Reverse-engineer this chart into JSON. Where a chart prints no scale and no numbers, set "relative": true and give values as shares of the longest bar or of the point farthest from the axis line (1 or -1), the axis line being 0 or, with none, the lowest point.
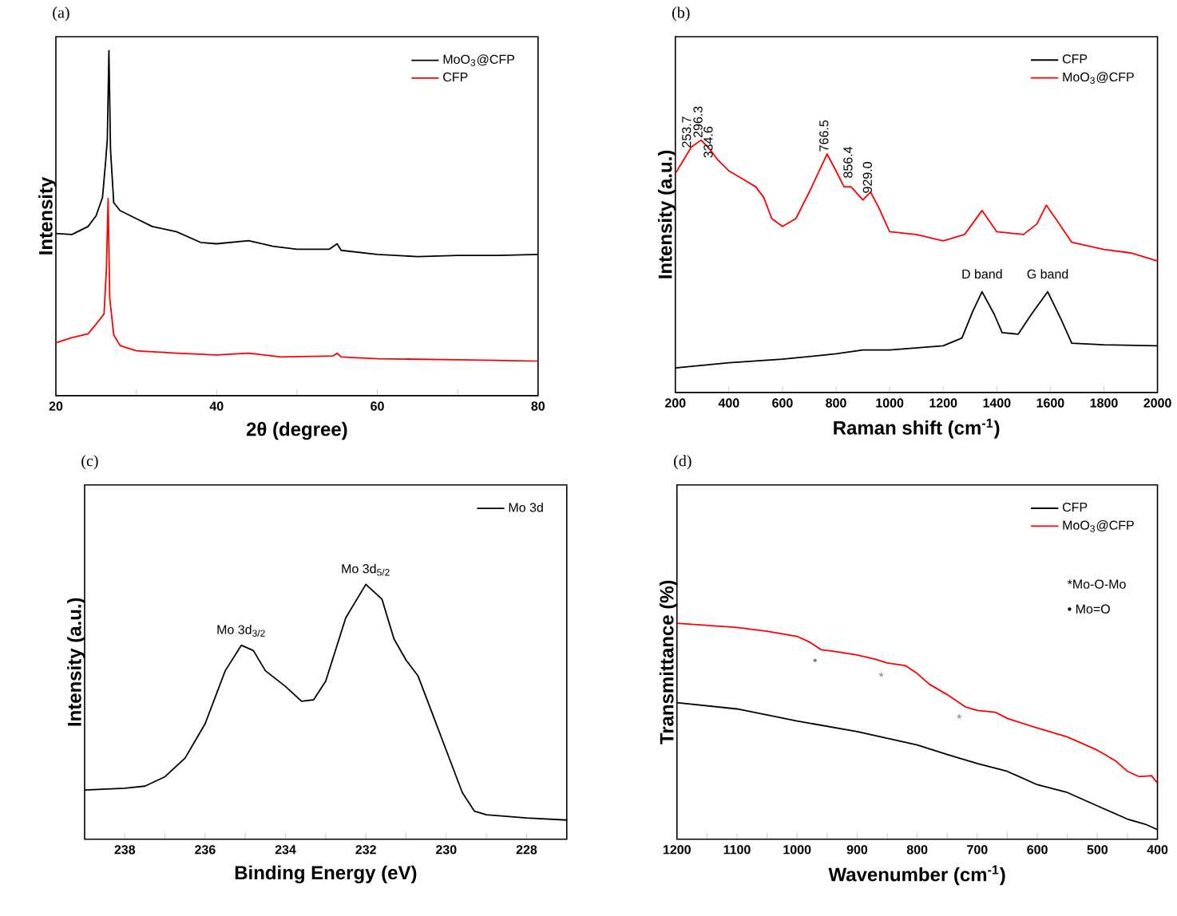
{
  "chart_data": [
    {
      "type": "line",
      "title": "(a)",
      "xlabel": "2θ (degree)",
      "ylabel": "Intensity",
      "relative": true,
      "tick_labels": "x",
      "legend": "top right",
      "marker": "none",
      "line_style": "solid",
      "xlim": [
        20,
        80
      ],
      "xticks": [
        20,
        {
          "value": 30,
          "label": null
        },
        40,
        {
          "value": 50,
          "label": null
        },
        60,
        {
          "value": 70,
          "label": null
        },
        80
      ],
      "series": [
        {
          "name": "MoO$_{3}$@CFP",
          "color": "#000000",
          "x": [
            20,
            22,
            24,
            25,
            25.8,
            26.2,
            26.4,
            26.6,
            26.8,
            27.2,
            28,
            30,
            32,
            35,
            38,
            40,
            44,
            47,
            50,
            54,
            55,
            55.5,
            60,
            65,
            70,
            75,
            80
          ],
          "values": [
            0.47,
            0.467,
            0.49,
            0.521,
            0.574,
            0.681,
            0.743,
            1.0,
            0.712,
            0.559,
            0.536,
            0.513,
            0.49,
            0.475,
            0.444,
            0.44,
            0.449,
            0.433,
            0.424,
            0.424,
            0.44,
            0.421,
            0.409,
            0.403,
            0.406,
            0.406,
            0.409
          ]
        },
        {
          "name": "CFP",
          "color": "#ff0000",
          "x": [
            20,
            22,
            24,
            25,
            26,
            26.3,
            26.5,
            26.7,
            27.2,
            28,
            30,
            35,
            40,
            44,
            48,
            54.5,
            55,
            55.5,
            60,
            70,
            80
          ],
          "values": [
            0.153,
            0.168,
            0.179,
            0.207,
            0.237,
            0.375,
            0.571,
            0.283,
            0.176,
            0.145,
            0.13,
            0.123,
            0.118,
            0.123,
            0.112,
            0.115,
            0.123,
            0.112,
            0.107,
            0.104,
            0.1
          ]
        }
      ]
    },
    {
      "type": "line",
      "title": "(b)",
      "xlabel": "Raman shift (cm$^{-1}$)",
      "ylabel": "Intensity (a.u.)",
      "relative": true,
      "tick_labels": "x",
      "legend": "top right",
      "marker": "none",
      "line_style": "solid",
      "xlim": [
        200,
        2000
      ],
      "xticks": [
        200,
        400,
        600,
        800,
        1000,
        1200,
        1400,
        1600,
        1800,
        2000
      ],
      "series": [
        {
          "name": "CFP",
          "color": "#000000",
          "x": [
            200,
            400,
            600,
            800,
            900,
            1000,
            1200,
            1270,
            1310,
            1345,
            1390,
            1420,
            1480,
            1530,
            1590,
            1640,
            1680,
            1800,
            2000
          ],
          "values": [
            0.097,
            0.118,
            0.132,
            0.153,
            0.168,
            0.168,
            0.185,
            0.216,
            0.321,
            0.399,
            0.311,
            0.237,
            0.231,
            0.311,
            0.399,
            0.29,
            0.195,
            0.189,
            0.185
          ]
        },
        {
          "name": "MoO$_{3}$@CFP",
          "color": "#ff0000",
          "x": [
            200,
            230,
            260,
            296.3,
            330,
            360,
            400,
            450,
            500,
            530,
            560,
            600,
            650,
            700,
            766.5,
            800,
            830,
            856,
            900,
            929,
            960,
            1000,
            1100,
            1200,
            1280,
            1345,
            1400,
            1500,
            1550,
            1585,
            1620,
            1680,
            1800,
            1900,
            2000
          ],
          "values": [
            0.868,
            0.92,
            0.973,
            1.0,
            0.962,
            0.92,
            0.878,
            0.847,
            0.815,
            0.773,
            0.689,
            0.658,
            0.689,
            0.794,
            0.945,
            0.878,
            0.815,
            0.815,
            0.763,
            0.794,
            0.731,
            0.637,
            0.626,
            0.601,
            0.626,
            0.721,
            0.637,
            0.626,
            0.668,
            0.742,
            0.689,
            0.595,
            0.567,
            0.553,
            0.521
          ]
        }
      ],
      "annotations": [
        {
          "text": "253.7",
          "x": 253.7,
          "y": 0.96
        },
        {
          "text": "296.3",
          "x": 296.3,
          "y": 1.0
        },
        {
          "text": "334.6",
          "x": 334.6,
          "y": 0.92
        },
        {
          "text": "766.5",
          "x": 766.5,
          "y": 0.945
        },
        {
          "text": "856.4",
          "x": 856.4,
          "y": 0.84
        },
        {
          "text": "929.0",
          "x": 929.0,
          "y": 0.78
        },
        {
          "text": "D band",
          "x": 1345,
          "y": 0.43
        },
        {
          "text": "G band",
          "x": 1590,
          "y": 0.43
        }
      ]
    },
    {
      "type": "line",
      "title": "(c)",
      "xlabel": "Binding Energy (eV)",
      "ylabel": "Intensity (a.u.)",
      "relative": true,
      "tick_labels": "x",
      "legend": "top right",
      "marker": "none",
      "line_style": "solid",
      "xlim": [
        239,
        227
      ],
      "xticks": [
        238,
        {
          "value": 237,
          "label": null
        },
        236,
        {
          "value": 235,
          "label": null
        },
        234,
        {
          "value": 233,
          "label": null
        },
        232,
        {
          "value": 231,
          "label": null
        },
        230,
        {
          "value": 229,
          "label": null
        },
        228
      ],
      "series": [
        {
          "name": "Mo 3d",
          "color": "#000000",
          "x": [
            239,
            238,
            237.5,
            237,
            236.5,
            236,
            235.5,
            235.1,
            234.8,
            234.5,
            234,
            233.6,
            233.3,
            233,
            232.5,
            232,
            231.6,
            231.3,
            231,
            230.7,
            230.3,
            230,
            229.6,
            229.3,
            229,
            228,
            227
          ],
          "values": [
            0.193,
            0.2,
            0.208,
            0.245,
            0.318,
            0.453,
            0.661,
            0.761,
            0.74,
            0.661,
            0.599,
            0.541,
            0.547,
            0.62,
            0.869,
            1.0,
            0.942,
            0.786,
            0.703,
            0.64,
            0.474,
            0.349,
            0.183,
            0.11,
            0.096,
            0.083,
            0.075
          ]
        }
      ],
      "annotations": [
        {
          "text": "Mo 3d$_{3/2}$",
          "x": 235.1,
          "y": 0.761
        },
        {
          "text": "Mo 3d$_{5/2}$",
          "x": 232,
          "y": 1.0
        }
      ]
    },
    {
      "type": "line",
      "title": "(d)",
      "xlabel": "Wavenumber (cm$^{-1}$)",
      "ylabel": "Transmittance (%)",
      "relative": true,
      "tick_labels": "x",
      "legend": "top right",
      "marker": "none",
      "line_style": "solid",
      "xlim": [
        1200,
        400
      ],
      "xticks": [
        1200,
        {
          "value": 1150,
          "label": null
        },
        1100,
        {
          "value": 1050,
          "label": null
        },
        1000,
        {
          "value": 950,
          "label": null
        },
        900,
        {
          "value": 850,
          "label": null
        },
        800,
        {
          "value": 750,
          "label": null
        },
        700,
        {
          "value": 650,
          "label": null
        },
        600,
        {
          "value": 550,
          "label": null
        },
        500,
        {
          "value": 450,
          "label": null
        },
        400
      ],
      "series": [
        {
          "name": "CFP",
          "color": "#000000",
          "x": [
            1200,
            1100,
            1000,
            900,
            800,
            750,
            700,
            650,
            600,
            550,
            500,
            450,
            420,
            400
          ],
          "values": [
            0.632,
            0.603,
            0.547,
            0.498,
            0.436,
            0.392,
            0.35,
            0.314,
            0.252,
            0.216,
            0.154,
            0.093,
            0.069,
            0.044
          ]
        },
        {
          "name": "MoO$_{3}$@CFP",
          "color": "#ff0000",
          "x": [
            1200,
            1100,
            1050,
            1000,
            980,
            960,
            940,
            900,
            870,
            850,
            820,
            800,
            780,
            750,
            720,
            700,
            670,
            650,
            600,
            550,
            500,
            470,
            450,
            430,
            410,
            400
          ],
          "values": [
            1.0,
            0.98,
            0.963,
            0.939,
            0.914,
            0.877,
            0.87,
            0.853,
            0.833,
            0.816,
            0.804,
            0.767,
            0.718,
            0.669,
            0.613,
            0.596,
            0.588,
            0.559,
            0.515,
            0.473,
            0.412,
            0.363,
            0.314,
            0.289,
            0.294,
            0.26
          ]
        }
      ],
      "annotations": [
        {
          "text": "•",
          "x": 970,
          "y": 0.896
        },
        {
          "text": "*",
          "x": 860,
          "y": 0.825
        },
        {
          "text": "*",
          "x": 730,
          "y": 0.632
        },
        "*Mo-O-Mo",
        "• Mo=O"
      ]
    }
  ]
}
